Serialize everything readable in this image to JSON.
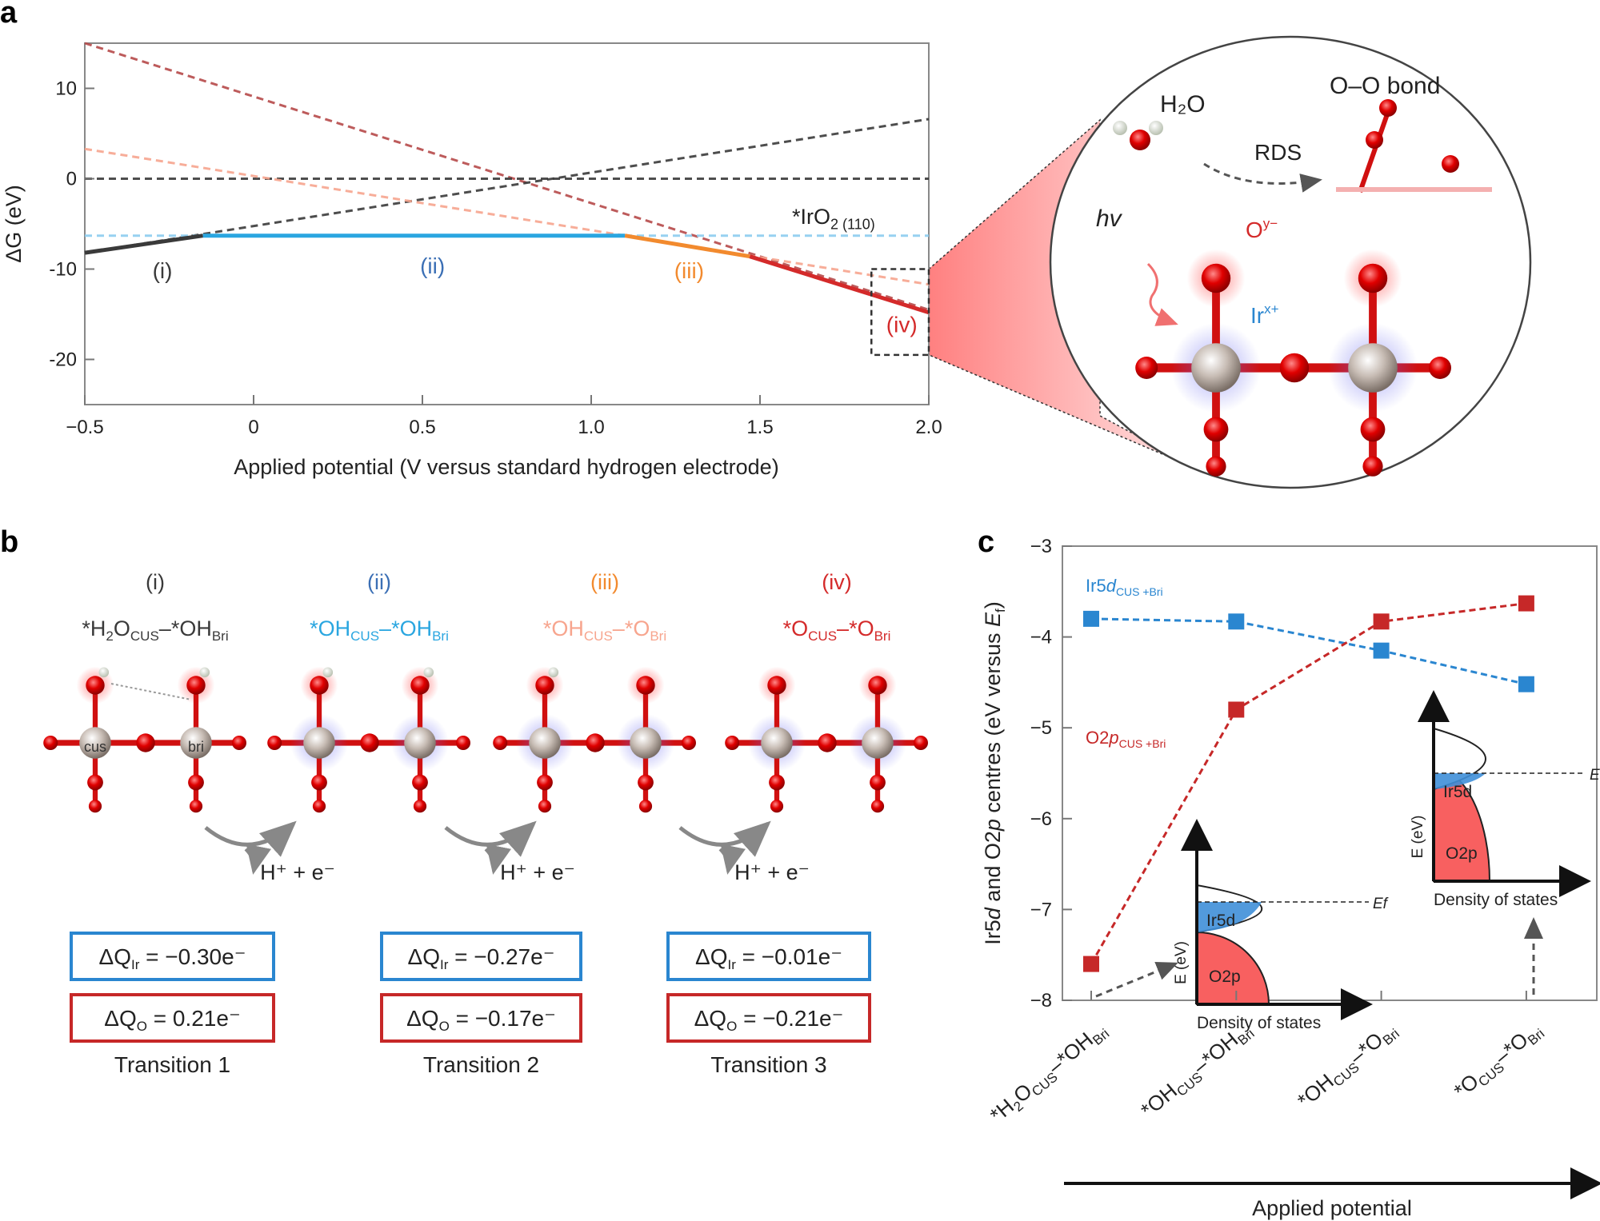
{
  "colors": {
    "black": "#3a3a3a",
    "blue": "#2aa6e0",
    "orange": "#f28a2e",
    "red": "#d42a2a",
    "salmon": "#f7a58e",
    "darkred": "#b64a4a",
    "lightblue": "#8ccdf0",
    "iblue": "#3b6fb5",
    "boxblue": "#2a86d0",
    "boxred": "#c62828"
  },
  "panel_labels": {
    "a": "a",
    "b": "b",
    "c": "c"
  },
  "chart_data": [
    {
      "type": "line",
      "panel": "a",
      "xlabel": "Applied potential (V versus standard hydrogen electrode)",
      "ylabel": "ΔG (eV)",
      "xlim": [
        -0.5,
        2.0
      ],
      "ylim": [
        -25,
        15
      ],
      "xticks": [
        -0.5,
        0,
        0.5,
        1.0,
        1.5,
        2.0
      ],
      "xtick_labels": [
        "−0.5",
        "0",
        "0.5",
        "1.0",
        "1.5",
        "2.0"
      ],
      "yticks": [
        10,
        0,
        -10,
        -20
      ],
      "ytick_labels": [
        "10",
        "0",
        "-10",
        "-20"
      ],
      "grid": false,
      "dashed_lines": [
        {
          "color": "darkred",
          "x": [
            -0.5,
            2.0
          ],
          "y": [
            15,
            -14.5
          ]
        },
        {
          "color": "black",
          "x": [
            -0.5,
            2.0
          ],
          "y": [
            -8.2,
            6.6
          ]
        },
        {
          "color": "black",
          "x": [
            -0.5,
            2.0
          ],
          "y": [
            0,
            0
          ]
        },
        {
          "color": "lightblue",
          "x": [
            -0.5,
            2.0
          ],
          "y": [
            -6.3,
            -6.3
          ]
        },
        {
          "color": "salmon",
          "x": [
            -0.5,
            2.0
          ],
          "y": [
            3.3,
            -11.7
          ]
        }
      ],
      "solid_segments": [
        {
          "color": "black",
          "x": [
            -0.5,
            -0.15
          ],
          "y": [
            -8.2,
            -6.3
          ]
        },
        {
          "color": "blue",
          "x": [
            -0.15,
            1.1
          ],
          "y": [
            -6.3,
            -6.3
          ]
        },
        {
          "color": "orange",
          "x": [
            1.1,
            1.47
          ],
          "y": [
            -6.3,
            -8.6
          ]
        },
        {
          "color": "red",
          "x": [
            1.47,
            2.0
          ],
          "y": [
            -8.6,
            -14.8
          ]
        }
      ],
      "annotations": [
        {
          "text": "(i)",
          "x": -0.27,
          "y": -11,
          "color": "black"
        },
        {
          "text": "(ii)",
          "x": 0.53,
          "y": -10.5,
          "color": "iblue"
        },
        {
          "text": "(iii)",
          "x": 1.29,
          "y": -11,
          "color": "orange"
        },
        {
          "text": "(iv)",
          "x": 1.92,
          "y": -17,
          "color": "red"
        }
      ],
      "surface_label": [
        {
          "t": "*IrO"
        },
        {
          "t": "2 (110)",
          "sub": true
        }
      ],
      "zoom_box": {
        "x": [
          1.83,
          2.0
        ],
        "y": [
          -10,
          -19.5
        ]
      }
    },
    {
      "type": "line",
      "panel": "c",
      "ylabel": "Ir5d and O2p centres (eV versus E_f)",
      "ylabel_parts": [
        {
          "t": "Ir5"
        },
        {
          "t": "d",
          "it": true
        },
        {
          "t": " and O2"
        },
        {
          "t": "p",
          "it": true
        },
        {
          "t": " centres (eV versus "
        },
        {
          "t": "E",
          "it": true
        },
        {
          "t": "f",
          "sub": true
        },
        {
          "t": ")"
        }
      ],
      "xlabel": "Applied potential",
      "ylim": [
        -8,
        -3
      ],
      "yticks": [
        -3,
        -4,
        -5,
        -6,
        -7,
        -8
      ],
      "ytick_labels": [
        "−3",
        "−4",
        "−5",
        "−6",
        "−7",
        "−8"
      ],
      "grid": false,
      "categories": [
        [
          {
            "t": "*H"
          },
          {
            "t": "2",
            "sub": true
          },
          {
            "t": "O"
          },
          {
            "t": "CUS",
            "sub": true
          },
          {
            "t": "–*OH"
          },
          {
            "t": "Bri",
            "sub": true
          }
        ],
        [
          {
            "t": "*OH"
          },
          {
            "t": "CUS",
            "sub": true
          },
          {
            "t": "–*OH"
          },
          {
            "t": "Bri",
            "sub": true
          }
        ],
        [
          {
            "t": "*OH"
          },
          {
            "t": "CUS",
            "sub": true
          },
          {
            "t": "–*O"
          },
          {
            "t": "Bri",
            "sub": true
          }
        ],
        [
          {
            "t": "*O"
          },
          {
            "t": "CUS",
            "sub": true
          },
          {
            "t": "–*O"
          },
          {
            "t": "Bri",
            "sub": true
          }
        ]
      ],
      "series": [
        {
          "name": "Ir5dCUS+Bri",
          "name_parts": [
            {
              "t": "Ir5"
            },
            {
              "t": "d",
              "it": true
            },
            {
              "t": "CUS +Bri",
              "sub": true
            }
          ],
          "color": "boxblue",
          "values": [
            -3.8,
            -3.83,
            -4.15,
            -4.52
          ]
        },
        {
          "name": "O2pCUS+Bri",
          "name_parts": [
            {
              "t": "O2"
            },
            {
              "t": "p",
              "it": true
            },
            {
              "t": "CUS +Bri",
              "sub": true
            }
          ],
          "color": "boxred",
          "values": [
            -7.6,
            -4.8,
            -3.83,
            -3.63
          ]
        }
      ],
      "insets": [
        {
          "ylabel": "E (eV)",
          "xlabel": "Density of states",
          "d_label": "Ir5d",
          "p_label": "O2p",
          "ef_label": "Ef"
        },
        {
          "ylabel": "E (eV)",
          "xlabel": "Density of states",
          "d_label": "Ir5d",
          "p_label": "O2p",
          "ef_label": "Ef"
        }
      ]
    }
  ],
  "magnifier": {
    "h2o": "H₂O",
    "oo_bond": "O–O bond",
    "rds": "RDS",
    "hv": "hv",
    "oy": "O",
    "oy_sup": "y−",
    "ir": "Ir",
    "ir_sup": "x+"
  },
  "panel_b": {
    "states": [
      {
        "roman": "(i)",
        "color": "black",
        "formula": [
          {
            "t": "*H"
          },
          {
            "t": "2",
            "sub": true
          },
          {
            "t": "O"
          },
          {
            "t": "CUS",
            "sub": true
          },
          {
            "t": "–*OH"
          },
          {
            "t": "Bri",
            "sub": true
          }
        ],
        "site_labels": [
          "cus",
          "bri"
        ]
      },
      {
        "roman": "(ii)",
        "color": "iblue",
        "fcolor": "blue",
        "formula": [
          {
            "t": "*OH"
          },
          {
            "t": "CUS",
            "sub": true
          },
          {
            "t": "–*OH"
          },
          {
            "t": "Bri",
            "sub": true
          }
        ]
      },
      {
        "roman": "(iii)",
        "color": "orange",
        "fcolor": "salmon",
        "formula": [
          {
            "t": "*OH"
          },
          {
            "t": "CUS",
            "sub": true
          },
          {
            "t": "–*O"
          },
          {
            "t": "Bri",
            "sub": true
          }
        ]
      },
      {
        "roman": "(iv)",
        "color": "red",
        "formula": [
          {
            "t": "*O"
          },
          {
            "t": "CUS",
            "sub": true
          },
          {
            "t": "–*O"
          },
          {
            "t": "Bri",
            "sub": true
          }
        ]
      }
    ],
    "release": "H⁺ + e⁻",
    "transitions": [
      {
        "label": "Transition 1",
        "dq_ir": "= −0.30e⁻",
        "dq_o": "= 0.21e⁻"
      },
      {
        "label": "Transition 2",
        "dq_ir": "= −0.27e⁻",
        "dq_o": "= −0.17e⁻"
      },
      {
        "label": "Transition 3",
        "dq_ir": "= −0.01e⁻",
        "dq_o": "= −0.21e⁻"
      }
    ],
    "dq_ir_prefix": [
      {
        "t": "ΔQ"
      },
      {
        "t": "Ir",
        "sub": true
      }
    ],
    "dq_o_prefix": [
      {
        "t": "ΔQ"
      },
      {
        "t": "O",
        "sub": true
      }
    ]
  }
}
